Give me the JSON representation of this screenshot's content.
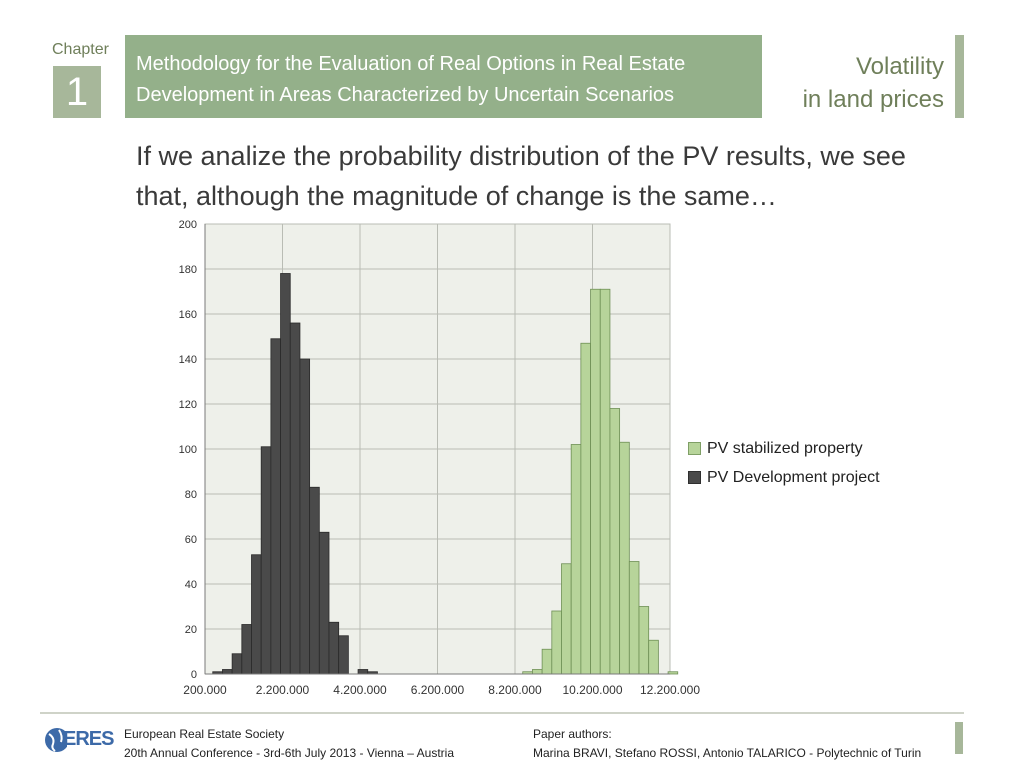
{
  "header": {
    "chapter_label": "Chapter",
    "chapter_number": "1",
    "title": "Methodology for the Evaluation of Real Options in Real Estate Development in Areas Characterized by Uncertain Scenarios",
    "section_title_line1": "Volatility",
    "section_title_line2": "in land prices"
  },
  "subtitle": "If we analize the probability distribution of the PV results, we see that, although the magnitude of change is the same…",
  "chart_data": {
    "type": "bar",
    "title": "",
    "xlabel": "",
    "ylabel": "",
    "xlim": [
      200000,
      12200000
    ],
    "ylim": [
      0,
      200
    ],
    "grid": true,
    "legend_position": "right",
    "y_ticks": [
      0,
      20,
      40,
      60,
      80,
      100,
      120,
      140,
      160,
      180,
      200
    ],
    "x_ticks": [
      200000,
      2200000,
      4200000,
      6200000,
      8200000,
      10200000,
      12200000
    ],
    "x_tick_labels": [
      "200.000",
      "2.200.000",
      "4.200.000",
      "6.200.000",
      "8.200.000",
      "10.200.000",
      "12.200.000"
    ],
    "bin_width": 250000,
    "series": [
      {
        "name": "PV Development project",
        "color": "#4a4a4a",
        "bins": [
          {
            "x": 525000,
            "y": 1
          },
          {
            "x": 775000,
            "y": 2
          },
          {
            "x": 1025000,
            "y": 9
          },
          {
            "x": 1275000,
            "y": 22
          },
          {
            "x": 1525000,
            "y": 53
          },
          {
            "x": 1775000,
            "y": 101
          },
          {
            "x": 2025000,
            "y": 149
          },
          {
            "x": 2275000,
            "y": 178
          },
          {
            "x": 2525000,
            "y": 156
          },
          {
            "x": 2775000,
            "y": 140
          },
          {
            "x": 3025000,
            "y": 83
          },
          {
            "x": 3275000,
            "y": 63
          },
          {
            "x": 3525000,
            "y": 23
          },
          {
            "x": 3775000,
            "y": 17
          },
          {
            "x": 4275000,
            "y": 2
          },
          {
            "x": 4525000,
            "y": 1
          }
        ]
      },
      {
        "name": "PV stabilized property",
        "color": "#b7d49a",
        "bins": [
          {
            "x": 8525000,
            "y": 1
          },
          {
            "x": 8775000,
            "y": 2
          },
          {
            "x": 9025000,
            "y": 11
          },
          {
            "x": 9275000,
            "y": 28
          },
          {
            "x": 9525000,
            "y": 49
          },
          {
            "x": 9775000,
            "y": 102
          },
          {
            "x": 10025000,
            "y": 147
          },
          {
            "x": 10275000,
            "y": 171
          },
          {
            "x": 10525000,
            "y": 171
          },
          {
            "x": 10775000,
            "y": 118
          },
          {
            "x": 11025000,
            "y": 103
          },
          {
            "x": 11275000,
            "y": 50
          },
          {
            "x": 11525000,
            "y": 30
          },
          {
            "x": 11775000,
            "y": 15
          },
          {
            "x": 12275000,
            "y": 1
          }
        ]
      }
    ]
  },
  "legend": {
    "items": [
      {
        "label": "PV stabilized property",
        "color": "#b7d49a"
      },
      {
        "label": "PV Development project",
        "color": "#4a4a4a"
      }
    ]
  },
  "footer": {
    "logo_text": "ERES",
    "org_line1": "European Real Estate Society",
    "org_line2": "20th Annual Conference - 3rd-6th July 2013 - Vienna – Austria",
    "authors_label": "Paper authors:",
    "authors": "Marina BRAVI, Stefano ROSSI, Antonio TALARICO - Polytechnic of Turin"
  }
}
